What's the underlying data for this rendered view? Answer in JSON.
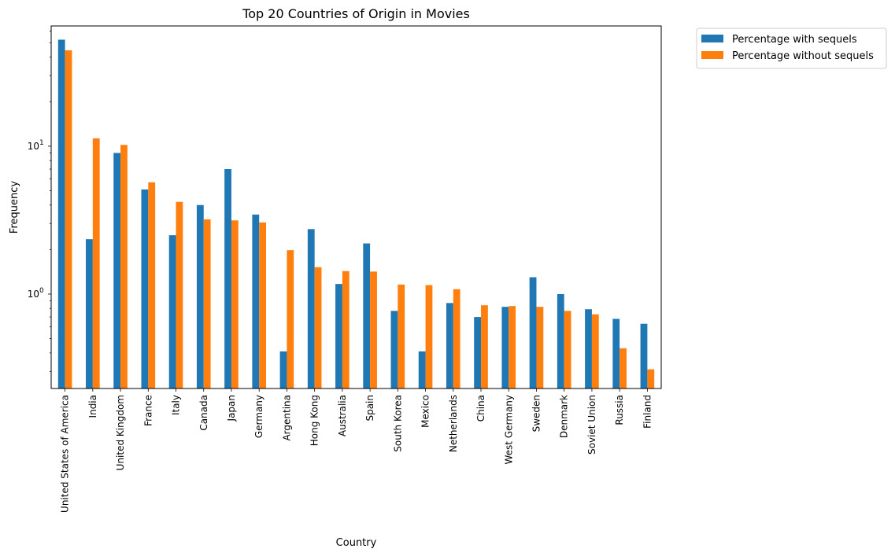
{
  "chart_data": {
    "type": "bar",
    "title": "Top 20 Countries of Origin in Movies",
    "xlabel": "Country",
    "ylabel": "Frequency",
    "yscale": "log",
    "ylim": [
      0.23,
      65
    ],
    "yticks": [
      {
        "value": 1,
        "base": "10",
        "exp": "0"
      },
      {
        "value": 10,
        "base": "10",
        "exp": "1"
      }
    ],
    "grid": false,
    "legend_position": "outside top-right",
    "categories": [
      "United States of America",
      "India",
      "United Kingdom",
      "France",
      "Italy",
      "Canada",
      "Japan",
      "Germany",
      "Argentina",
      "Hong Kong",
      "Australia",
      "Spain",
      "South Korea",
      "Mexico",
      "Netherlands",
      "China",
      "West Germany",
      "Sweden",
      "Denmark",
      "Soviet Union",
      "Russia",
      "Finland"
    ],
    "series": [
      {
        "name": "Percentage with sequels",
        "color": "#1f77b4",
        "values": [
          52.5,
          2.35,
          9.0,
          5.1,
          2.5,
          4.0,
          7.0,
          3.45,
          0.41,
          2.75,
          1.17,
          2.2,
          0.77,
          0.41,
          0.87,
          0.7,
          0.82,
          1.3,
          1.0,
          0.79,
          0.68,
          0.63
        ]
      },
      {
        "name": "Percentage without sequels",
        "color": "#ff7f0e",
        "values": [
          44.5,
          11.3,
          10.2,
          5.7,
          4.2,
          3.2,
          3.15,
          3.05,
          1.98,
          1.52,
          1.43,
          1.42,
          1.16,
          1.15,
          1.08,
          0.84,
          0.83,
          0.82,
          0.77,
          0.73,
          0.43,
          0.31
        ]
      }
    ]
  }
}
